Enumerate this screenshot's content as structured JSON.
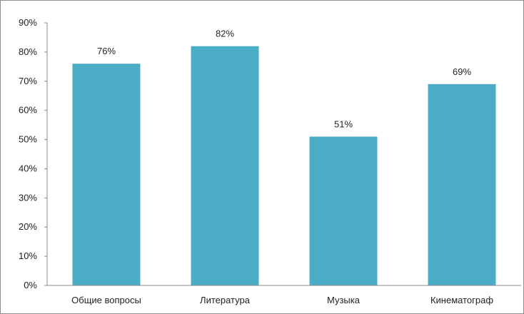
{
  "chart_data": {
    "type": "bar",
    "categories": [
      "Общие вопросы",
      "Литература",
      "Музыка",
      "Кинематограф"
    ],
    "values": [
      76,
      82,
      51,
      69
    ],
    "data_labels": [
      "76%",
      "82%",
      "51%",
      "69%"
    ],
    "title": "",
    "xlabel": "",
    "ylabel": "",
    "ylim": [
      0,
      90
    ],
    "yticks": [
      0,
      10,
      20,
      30,
      40,
      50,
      60,
      70,
      80,
      90
    ],
    "ytick_labels": [
      "0%",
      "10%",
      "20%",
      "30%",
      "40%",
      "50%",
      "60%",
      "70%",
      "80%",
      "90%"
    ],
    "grid": false,
    "legend": "none",
    "bar_color": "#4bacc6"
  }
}
